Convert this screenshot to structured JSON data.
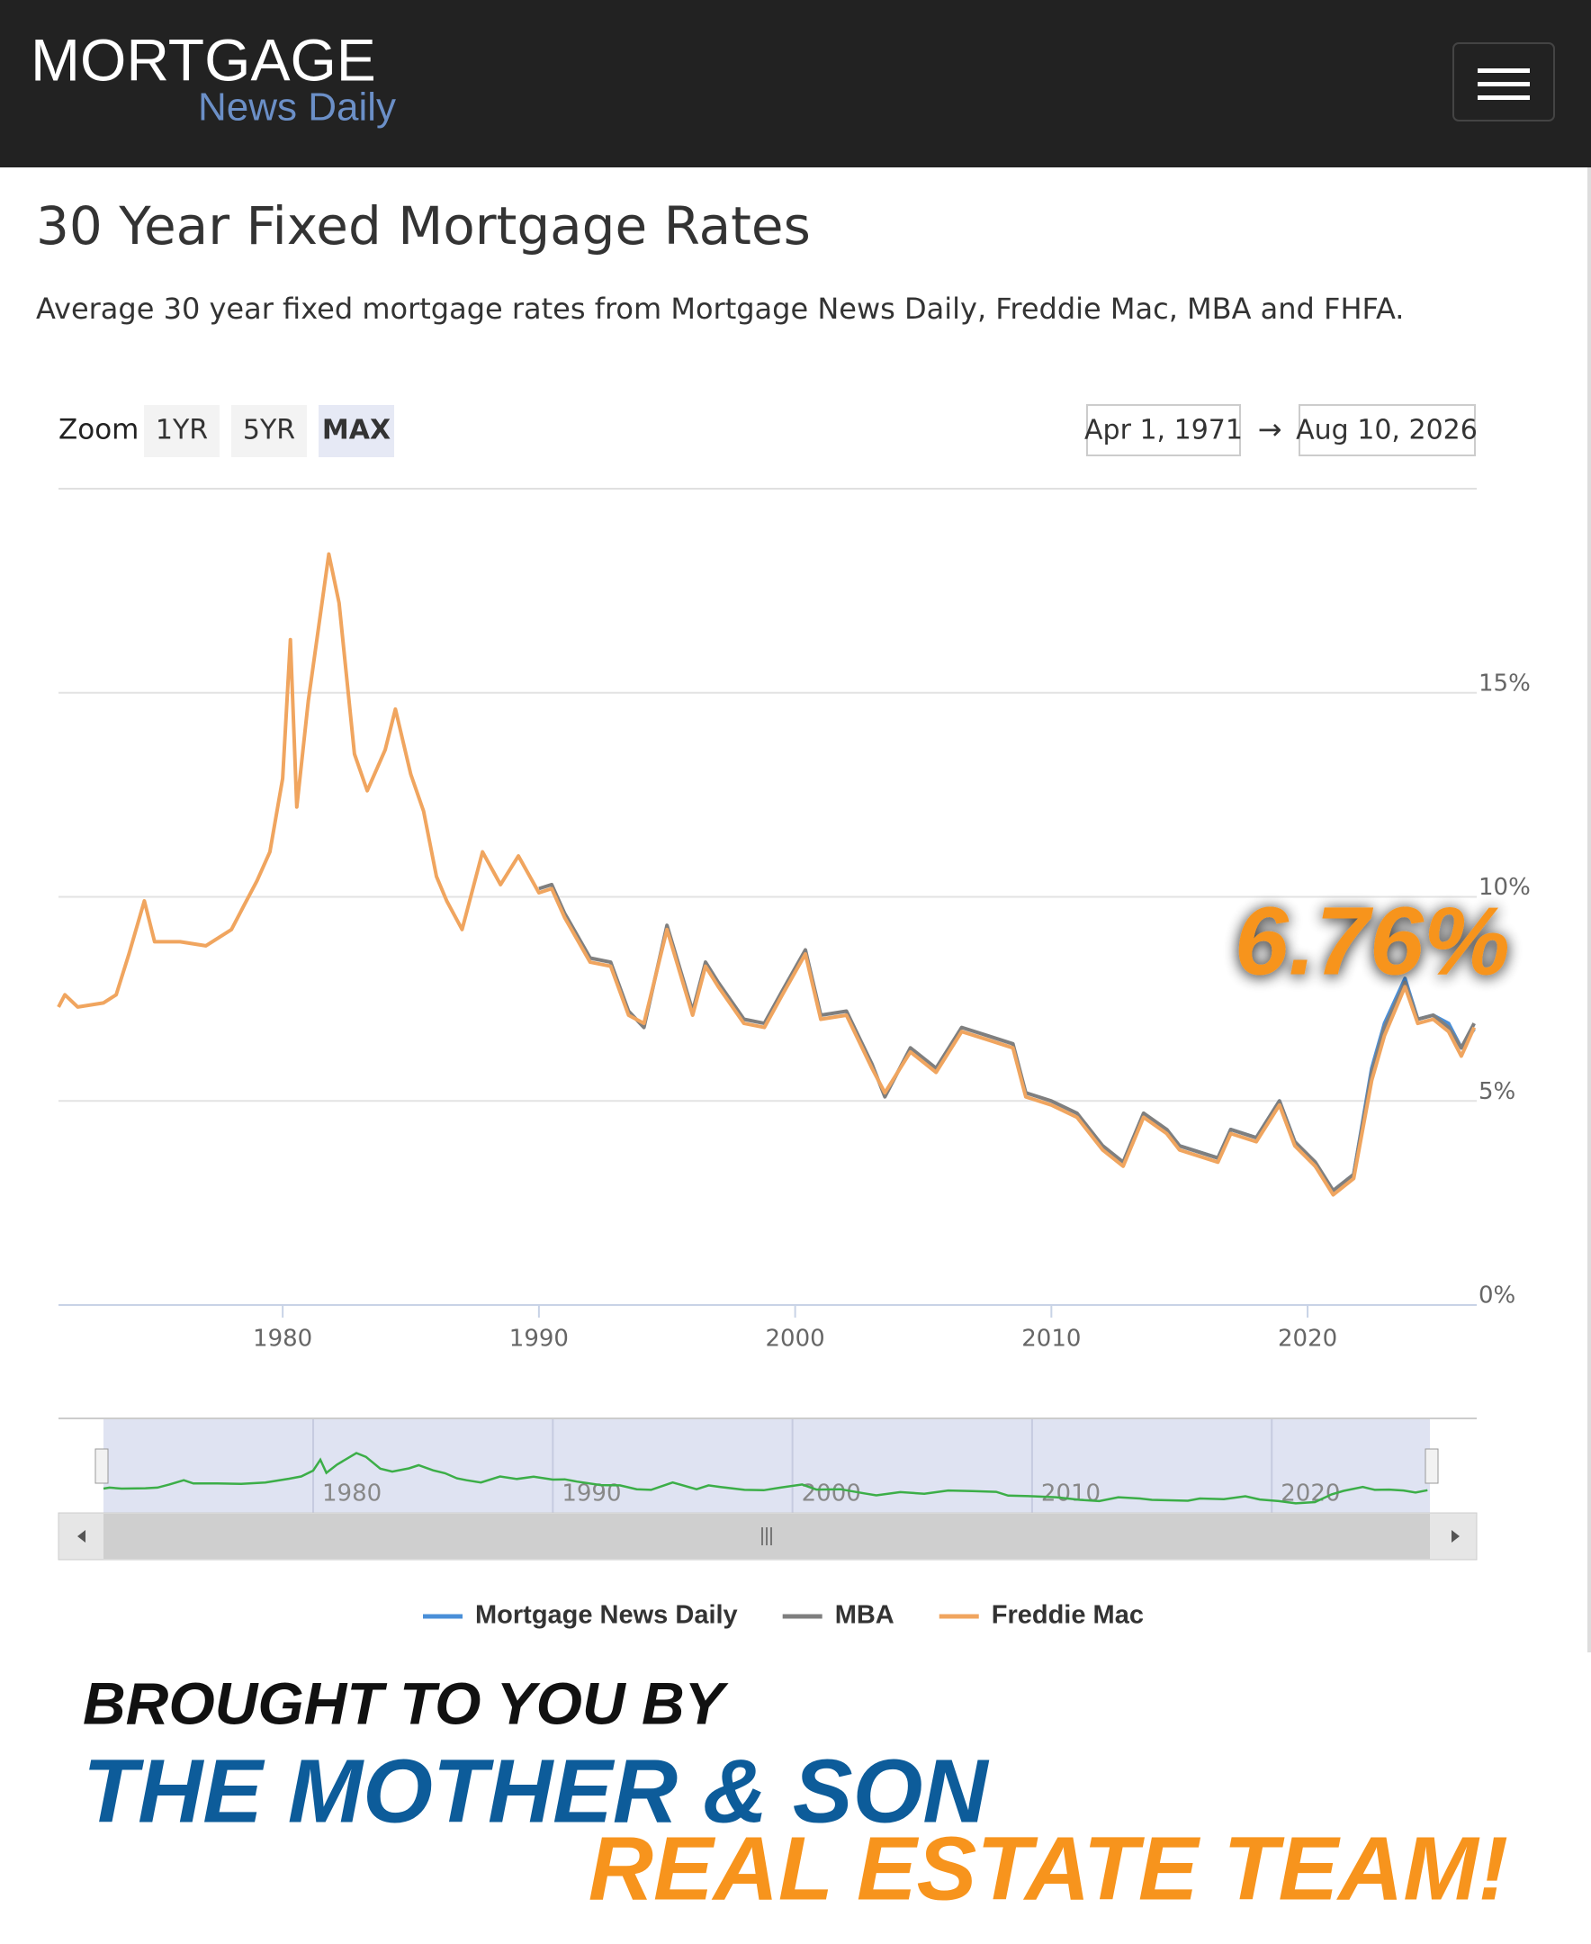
{
  "header": {
    "logo_main": "MORTGAGE",
    "logo_sub": "News Daily"
  },
  "page": {
    "title": "30 Year Fixed Mortgage Rates",
    "subtitle": "Average 30 year fixed mortgage rates from Mortgage News Daily, Freddie Mac, MBA and FHFA."
  },
  "controls": {
    "zoom_label": "Zoom",
    "zoom_buttons": [
      "1YR",
      "5YR",
      "MAX"
    ],
    "range_from": "Apr 1, 1971",
    "range_arrow": "→",
    "range_to": "Aug 10, 2026"
  },
  "chart_data": {
    "type": "line",
    "annotation": "6.76%",
    "x": [
      1971.25,
      1971.5,
      1972,
      1973,
      1973.5,
      1974,
      1974.6,
      1975,
      1976,
      1977,
      1978,
      1978.5,
      1979,
      1979.5,
      1980,
      1980.3,
      1980.55,
      1981,
      1981.8,
      1982.2,
      1982.8,
      1983.3,
      1984,
      1984.4,
      1985,
      1985.5,
      1986,
      1986.4,
      1987,
      1987.8,
      1988.5,
      1989.2,
      1990,
      1990.5,
      1991,
      1992,
      1992.8,
      1993.5,
      1994.1,
      1995,
      1996,
      1996.5,
      1997,
      1998,
      1998.8,
      1999.5,
      2000.4,
      2001,
      2002,
      2003,
      2003.5,
      2004.5,
      2005.5,
      2006.5,
      2007.5,
      2008.5,
      2009,
      2010,
      2011,
      2012,
      2012.8,
      2013.6,
      2014.5,
      2015,
      2016.5,
      2017,
      2018,
      2018.9,
      2019.5,
      2020.3,
      2021,
      2021.8,
      2022.5,
      2023,
      2023.8,
      2024.3,
      2024.9,
      2025.5,
      2026,
      2026.5
    ],
    "series": [
      {
        "name": "Mortgage News Daily",
        "color": "#4a8fd8",
        "values": [
          null,
          null,
          null,
          null,
          null,
          null,
          null,
          null,
          null,
          null,
          null,
          null,
          null,
          null,
          null,
          null,
          null,
          null,
          null,
          null,
          null,
          null,
          null,
          null,
          null,
          null,
          null,
          null,
          null,
          null,
          null,
          null,
          null,
          null,
          null,
          null,
          null,
          null,
          null,
          null,
          null,
          null,
          null,
          null,
          null,
          null,
          null,
          null,
          null,
          null,
          null,
          null,
          null,
          null,
          null,
          null,
          null,
          null,
          null,
          null,
          null,
          null,
          4.3,
          3.9,
          3.6,
          4.3,
          4.1,
          5.0,
          4.0,
          3.4,
          2.8,
          3.2,
          5.8,
          6.9,
          8.0,
          7.0,
          7.1,
          6.9,
          6.3,
          6.76
        ]
      },
      {
        "name": "MBA",
        "color": "#7f7f7f",
        "values": [
          null,
          null,
          null,
          null,
          null,
          null,
          null,
          null,
          null,
          null,
          null,
          null,
          null,
          null,
          null,
          null,
          null,
          null,
          null,
          null,
          null,
          null,
          null,
          null,
          null,
          null,
          null,
          null,
          null,
          null,
          null,
          null,
          10.2,
          10.3,
          9.6,
          8.5,
          8.4,
          7.2,
          6.8,
          9.3,
          7.2,
          8.4,
          7.9,
          7.0,
          6.9,
          7.7,
          8.7,
          7.1,
          7.2,
          5.9,
          5.1,
          6.3,
          5.8,
          6.8,
          6.6,
          6.4,
          5.2,
          5.0,
          4.7,
          3.9,
          3.5,
          4.7,
          4.3,
          3.9,
          3.6,
          4.3,
          4.1,
          5.0,
          4.0,
          3.5,
          2.8,
          3.2,
          5.7,
          6.8,
          7.9,
          7.0,
          7.1,
          6.8,
          6.3,
          6.9
        ]
      },
      {
        "name": "Freddie Mac",
        "color": "#f0a55f",
        "values": [
          7.3,
          7.6,
          7.3,
          7.4,
          7.6,
          8.6,
          9.9,
          8.9,
          8.9,
          8.8,
          9.2,
          9.8,
          10.4,
          11.1,
          12.9,
          16.3,
          12.2,
          14.8,
          18.4,
          17.2,
          13.5,
          12.6,
          13.6,
          14.6,
          13.0,
          12.1,
          10.5,
          9.9,
          9.2,
          11.1,
          10.3,
          11.0,
          10.1,
          10.2,
          9.5,
          8.4,
          8.3,
          7.1,
          6.9,
          9.2,
          7.1,
          8.3,
          7.8,
          6.9,
          6.8,
          7.6,
          8.6,
          7.0,
          7.1,
          5.8,
          5.2,
          6.2,
          5.7,
          6.7,
          6.5,
          6.3,
          5.1,
          4.9,
          4.6,
          3.8,
          3.4,
          4.6,
          4.2,
          3.8,
          3.5,
          4.2,
          4.0,
          4.9,
          3.9,
          3.4,
          2.7,
          3.1,
          5.5,
          6.6,
          7.8,
          6.9,
          7.0,
          6.7,
          6.1,
          6.8
        ]
      }
    ],
    "xlim": [
      1971.25,
      2026.6
    ],
    "xticks": [
      1980,
      1990,
      2000,
      2010,
      2020
    ],
    "ylim": [
      0,
      20
    ],
    "yticks": [
      {
        "value": 0,
        "label": "0%"
      },
      {
        "value": 5,
        "label": "5%"
      },
      {
        "value": 10,
        "label": "10%"
      },
      {
        "value": 15,
        "label": "15%"
      }
    ],
    "grid": true,
    "navigator_color": "#3cae48",
    "annotation_color": "#f7941d"
  },
  "promo": {
    "line1": "BROUGHT TO YOU BY",
    "line2": "THE MOTHER & SON",
    "line3": "REAL ESTATE TEAM!"
  }
}
